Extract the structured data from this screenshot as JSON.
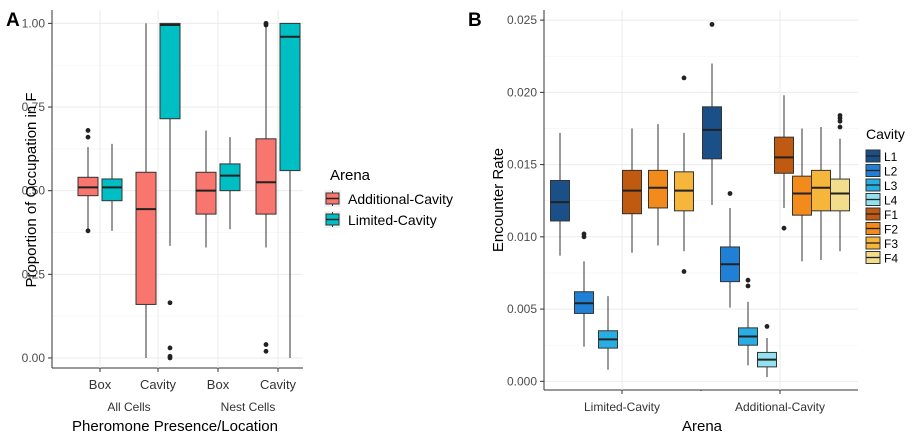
{
  "chart_data": [
    {
      "type": "boxplot",
      "panel_label": "A",
      "ylabel": "Proportion of Occupation in F",
      "xlabel": "Pheromone Presence/Location",
      "ylim": [
        -0.03,
        1.04
      ],
      "yticks": [
        0.0,
        0.25,
        0.5,
        0.75,
        1.0
      ],
      "ytick_labels": [
        "0.00",
        "0.25",
        "0.50",
        "0.75",
        "1.00"
      ],
      "grid": true,
      "legend": {
        "title": "Arena",
        "position": "right",
        "entries": [
          {
            "name": "Additional-Cavity",
            "color": "#f8766d"
          },
          {
            "name": "Limited-Cavity",
            "color": "#00bfc4"
          }
        ]
      },
      "categories": [
        "Box",
        "Cavity",
        "Box",
        "Cavity"
      ],
      "groups": [
        {
          "label": "All Cells",
          "categories": [
            0,
            1
          ]
        },
        {
          "label": "Nest Cells",
          "categories": [
            2,
            3
          ]
        }
      ],
      "series": [
        {
          "name": "Additional-Cavity",
          "color": "#f8766d",
          "boxes": [
            {
              "whisker_low": 0.38,
              "q1": 0.485,
              "median": 0.51,
              "q3": 0.54,
              "whisker_high": 0.63,
              "outliers": [
                0.38,
                0.66,
                0.68
              ]
            },
            {
              "whisker_low": 0.0,
              "q1": 0.16,
              "median": 0.445,
              "q3": 0.555,
              "whisker_high": 1.0,
              "outliers": []
            },
            {
              "whisker_low": 0.33,
              "q1": 0.43,
              "median": 0.5,
              "q3": 0.555,
              "whisker_high": 0.68,
              "outliers": []
            },
            {
              "whisker_low": 0.33,
              "q1": 0.43,
              "median": 0.525,
              "q3": 0.655,
              "whisker_high": 0.99,
              "outliers": [
                0.02,
                0.04,
                0.995,
                1.0
              ]
            }
          ]
        },
        {
          "name": "Limited-Cavity",
          "color": "#00bfc4",
          "boxes": [
            {
              "whisker_low": 0.38,
              "q1": 0.47,
              "median": 0.51,
              "q3": 0.535,
              "whisker_high": 0.64,
              "outliers": []
            },
            {
              "whisker_low": 0.335,
              "q1": 0.715,
              "median": 0.995,
              "q3": 1.0,
              "whisker_high": 1.0,
              "outliers": [
                0.0,
                0.005,
                0.03,
                0.165
              ]
            },
            {
              "whisker_low": 0.385,
              "q1": 0.5,
              "median": 0.545,
              "q3": 0.58,
              "whisker_high": 0.66,
              "outliers": []
            },
            {
              "whisker_low": 0.0,
              "q1": 0.56,
              "median": 0.96,
              "q3": 1.0,
              "whisker_high": 1.0,
              "outliers": []
            }
          ]
        }
      ]
    },
    {
      "type": "boxplot",
      "panel_label": "B",
      "ylabel": "Encounter Rate",
      "xlabel": "Arena",
      "ylim": [
        -0.0006,
        0.0257
      ],
      "yticks": [
        0.0,
        0.005,
        0.01,
        0.015,
        0.02,
        0.025
      ],
      "ytick_labels": [
        "0.000",
        "0.005",
        "0.010",
        "0.015",
        "0.020",
        "0.025"
      ],
      "grid": true,
      "legend": {
        "title": "Cavity",
        "position": "right",
        "entries": [
          {
            "name": "L1",
            "color": "#1a4f88"
          },
          {
            "name": "L2",
            "color": "#1f80d6"
          },
          {
            "name": "L3",
            "color": "#29aee4"
          },
          {
            "name": "L4",
            "color": "#92e1ee"
          },
          {
            "name": "F1",
            "color": "#bf5a10"
          },
          {
            "name": "F2",
            "color": "#f38b1c"
          },
          {
            "name": "F3",
            "color": "#f6b53b"
          },
          {
            "name": "F4",
            "color": "#f3dd8c"
          }
        ]
      },
      "groups": [
        {
          "label": "Limited-Cavity",
          "boxes": [
            {
              "name": "L1",
              "color": "#1a4f88",
              "whisker_low": 0.0087,
              "q1": 0.0111,
              "median": 0.0124,
              "q3": 0.0139,
              "whisker_high": 0.0172,
              "outliers": []
            },
            {
              "name": "L2",
              "color": "#1f80d6",
              "whisker_low": 0.0024,
              "q1": 0.0047,
              "median": 0.0054,
              "q3": 0.0062,
              "whisker_high": 0.0083,
              "outliers": [
                0.01,
                0.0102
              ]
            },
            {
              "name": "L3",
              "color": "#29aee4",
              "whisker_low": 0.0008,
              "q1": 0.0023,
              "median": 0.0029,
              "q3": 0.0035,
              "whisker_high": 0.0059,
              "outliers": []
            },
            {
              "name": "F1",
              "color": "#bf5a10",
              "whisker_low": 0.0089,
              "q1": 0.0116,
              "median": 0.0132,
              "q3": 0.0146,
              "whisker_high": 0.0175,
              "outliers": []
            },
            {
              "name": "F2",
              "color": "#f38b1c",
              "whisker_low": 0.0094,
              "q1": 0.012,
              "median": 0.0134,
              "q3": 0.0146,
              "whisker_high": 0.0178,
              "outliers": []
            },
            {
              "name": "F3",
              "color": "#f6b53b",
              "whisker_low": 0.009,
              "q1": 0.0118,
              "median": 0.0132,
              "q3": 0.0145,
              "whisker_high": 0.0172,
              "outliers": [
                0.0076,
                0.021
              ]
            }
          ]
        },
        {
          "label": "Additional-Cavity",
          "boxes": [
            {
              "name": "L1",
              "color": "#1a4f88",
              "whisker_low": 0.0122,
              "q1": 0.0154,
              "median": 0.0174,
              "q3": 0.019,
              "whisker_high": 0.022,
              "outliers": [
                0.0247
              ]
            },
            {
              "name": "L2",
              "color": "#1f80d6",
              "whisker_low": 0.0051,
              "q1": 0.0069,
              "median": 0.0081,
              "q3": 0.0093,
              "whisker_high": 0.012,
              "outliers": [
                0.013
              ]
            },
            {
              "name": "L3",
              "color": "#29aee4",
              "whisker_low": 0.0011,
              "q1": 0.0025,
              "median": 0.0031,
              "q3": 0.0037,
              "whisker_high": 0.0055,
              "outliers": [
                0.0066,
                0.007
              ]
            },
            {
              "name": "L4",
              "color": "#92e1ee",
              "whisker_low": 0.0003,
              "q1": 0.001,
              "median": 0.0015,
              "q3": 0.002,
              "whisker_high": 0.003,
              "outliers": [
                0.0038
              ]
            },
            {
              "name": "F1",
              "color": "#bf5a10",
              "whisker_low": 0.012,
              "q1": 0.0144,
              "median": 0.0155,
              "q3": 0.0169,
              "whisker_high": 0.0198,
              "outliers": [
                0.0106
              ]
            },
            {
              "name": "F2",
              "color": "#f38b1c",
              "whisker_low": 0.0083,
              "q1": 0.0115,
              "median": 0.013,
              "q3": 0.0142,
              "whisker_high": 0.0175,
              "outliers": []
            },
            {
              "name": "F3",
              "color": "#f6b53b",
              "whisker_low": 0.0084,
              "q1": 0.0118,
              "median": 0.0134,
              "q3": 0.0146,
              "whisker_high": 0.0176,
              "outliers": []
            },
            {
              "name": "F4",
              "color": "#f3dd8c",
              "whisker_low": 0.009,
              "q1": 0.0118,
              "median": 0.013,
              "q3": 0.014,
              "whisker_high": 0.0168,
              "outliers": [
                0.0176,
                0.018,
                0.0182,
                0.0184
              ]
            }
          ]
        }
      ]
    }
  ]
}
